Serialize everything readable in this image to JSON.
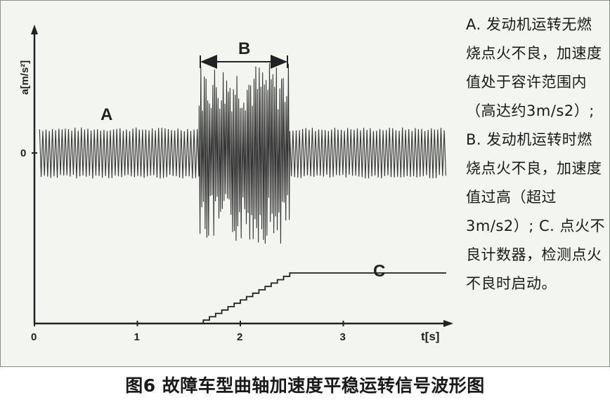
{
  "chart_data": {
    "type": "line",
    "xlabel": "t[s]",
    "ylabel": "a[m/s²]",
    "xlim": [
      0,
      4
    ],
    "ylim": [
      -1,
      1
    ],
    "x_ticks": [
      "0",
      "1",
      "2",
      "3"
    ],
    "y_ticks": [
      "0"
    ],
    "region_labels": {
      "A": "A",
      "B": "B",
      "C": "C"
    },
    "series": [
      {
        "label": "A",
        "segments": [
          {
            "t_start": 0.05,
            "t_end": 1.6,
            "amplitude": 0.28,
            "freq_hz": 32
          },
          {
            "t_start": 2.48,
            "t_end": 4.0,
            "amplitude": 0.28,
            "freq_hz": 32
          }
        ]
      },
      {
        "label": "B",
        "t_start": 1.6,
        "t_end": 2.48,
        "amplitude_max": 1.0,
        "freq_hz": 60
      },
      {
        "label": "C",
        "points": [
          [
            0.05,
            0.0
          ],
          [
            1.6,
            0.0
          ],
          [
            1.64,
            0.03
          ],
          [
            1.7,
            0.06
          ],
          [
            1.76,
            0.09
          ],
          [
            1.82,
            0.12
          ],
          [
            1.88,
            0.15
          ],
          [
            1.94,
            0.18
          ],
          [
            2.0,
            0.21
          ],
          [
            2.06,
            0.24
          ],
          [
            2.12,
            0.27
          ],
          [
            2.18,
            0.3
          ],
          [
            2.24,
            0.33
          ],
          [
            2.3,
            0.36
          ],
          [
            2.36,
            0.39
          ],
          [
            2.42,
            0.42
          ],
          [
            2.48,
            0.45
          ],
          [
            4.0,
            0.45
          ]
        ]
      }
    ],
    "b_span": [
      1.6,
      2.48
    ]
  },
  "description": "A. 发动机运转无燃烧点火不良，加速度值处于容许范围内（高达约3m/s2）; B. 发动机运转时燃烧点火不良，加速度值过高（超过3m/s2）; C. 点火不良计数器，检测点火不良时启动。",
  "caption": "图6 故障车型曲轴加速度平稳运转信号波形图"
}
